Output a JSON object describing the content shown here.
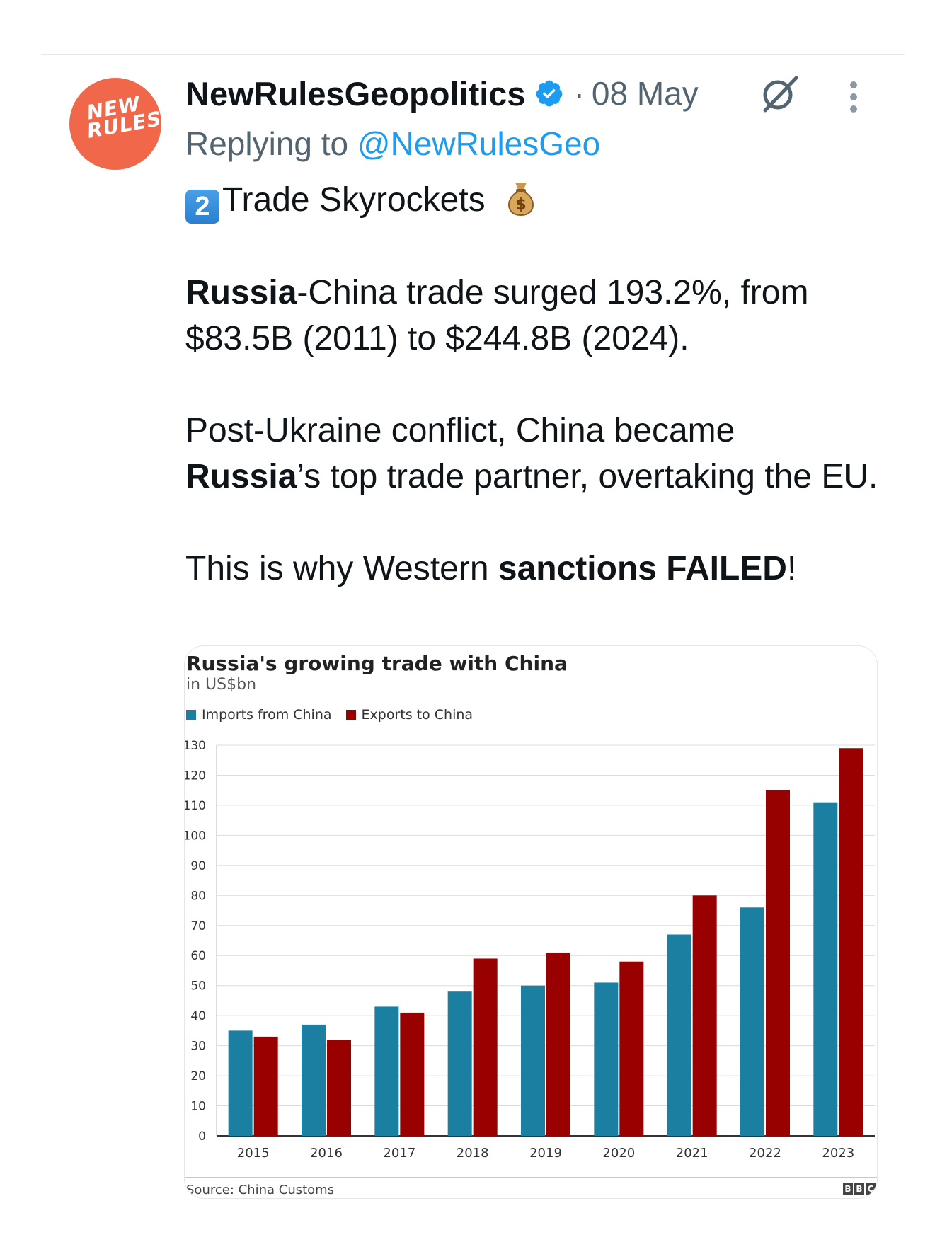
{
  "tweet": {
    "author": "NewRulesGeopolitics",
    "separator": "·",
    "date": "08 May",
    "reply_prefix": "Replying to",
    "reply_handle": "@NewRulesGeo",
    "avatar_text": "NEW RULES",
    "keycap": "2",
    "heading": "Trade Skyrockets",
    "para1_bold": "Russia",
    "para1_rest": "-China trade surged 193.2%, from $83.5B (2011) to $244.8B (2024).",
    "para2_start": "Post-Ukraine conflict, China became ",
    "para2_bold": "Russia",
    "para2_rest": "’s top trade partner, overtaking the EU.",
    "para3_start": "This is why Western ",
    "para3_bold": "sanctions FAILED",
    "para3_end": "!"
  },
  "icons": {
    "verified": "verified-badge-icon",
    "grok": "grok-icon",
    "more": "more-options-icon",
    "moneybag": "money-bag-icon"
  },
  "colors": {
    "link": "#1d9bf0",
    "avatar": "#f0674a",
    "imports": "#1a7fa0",
    "exports": "#990000"
  },
  "chart_data": {
    "type": "bar",
    "title": "Russia's growing trade with China",
    "subtitle": "in US$bn",
    "categories": [
      "2015",
      "2016",
      "2017",
      "2018",
      "2019",
      "2020",
      "2021",
      "2022",
      "2023"
    ],
    "series": [
      {
        "name": "Imports from China",
        "values": [
          35,
          37,
          43,
          48,
          50,
          51,
          67,
          76,
          111
        ]
      },
      {
        "name": "Exports to China",
        "values": [
          33,
          32,
          41,
          59,
          61,
          58,
          80,
          115,
          129
        ]
      }
    ],
    "ylim": [
      0,
      130
    ],
    "yticks": [
      0,
      10,
      20,
      30,
      40,
      50,
      60,
      70,
      80,
      90,
      100,
      110,
      120,
      130
    ],
    "grid": true,
    "legend": "top-left",
    "source": "Source: China Customs",
    "logo": [
      "B",
      "B",
      "C"
    ]
  }
}
